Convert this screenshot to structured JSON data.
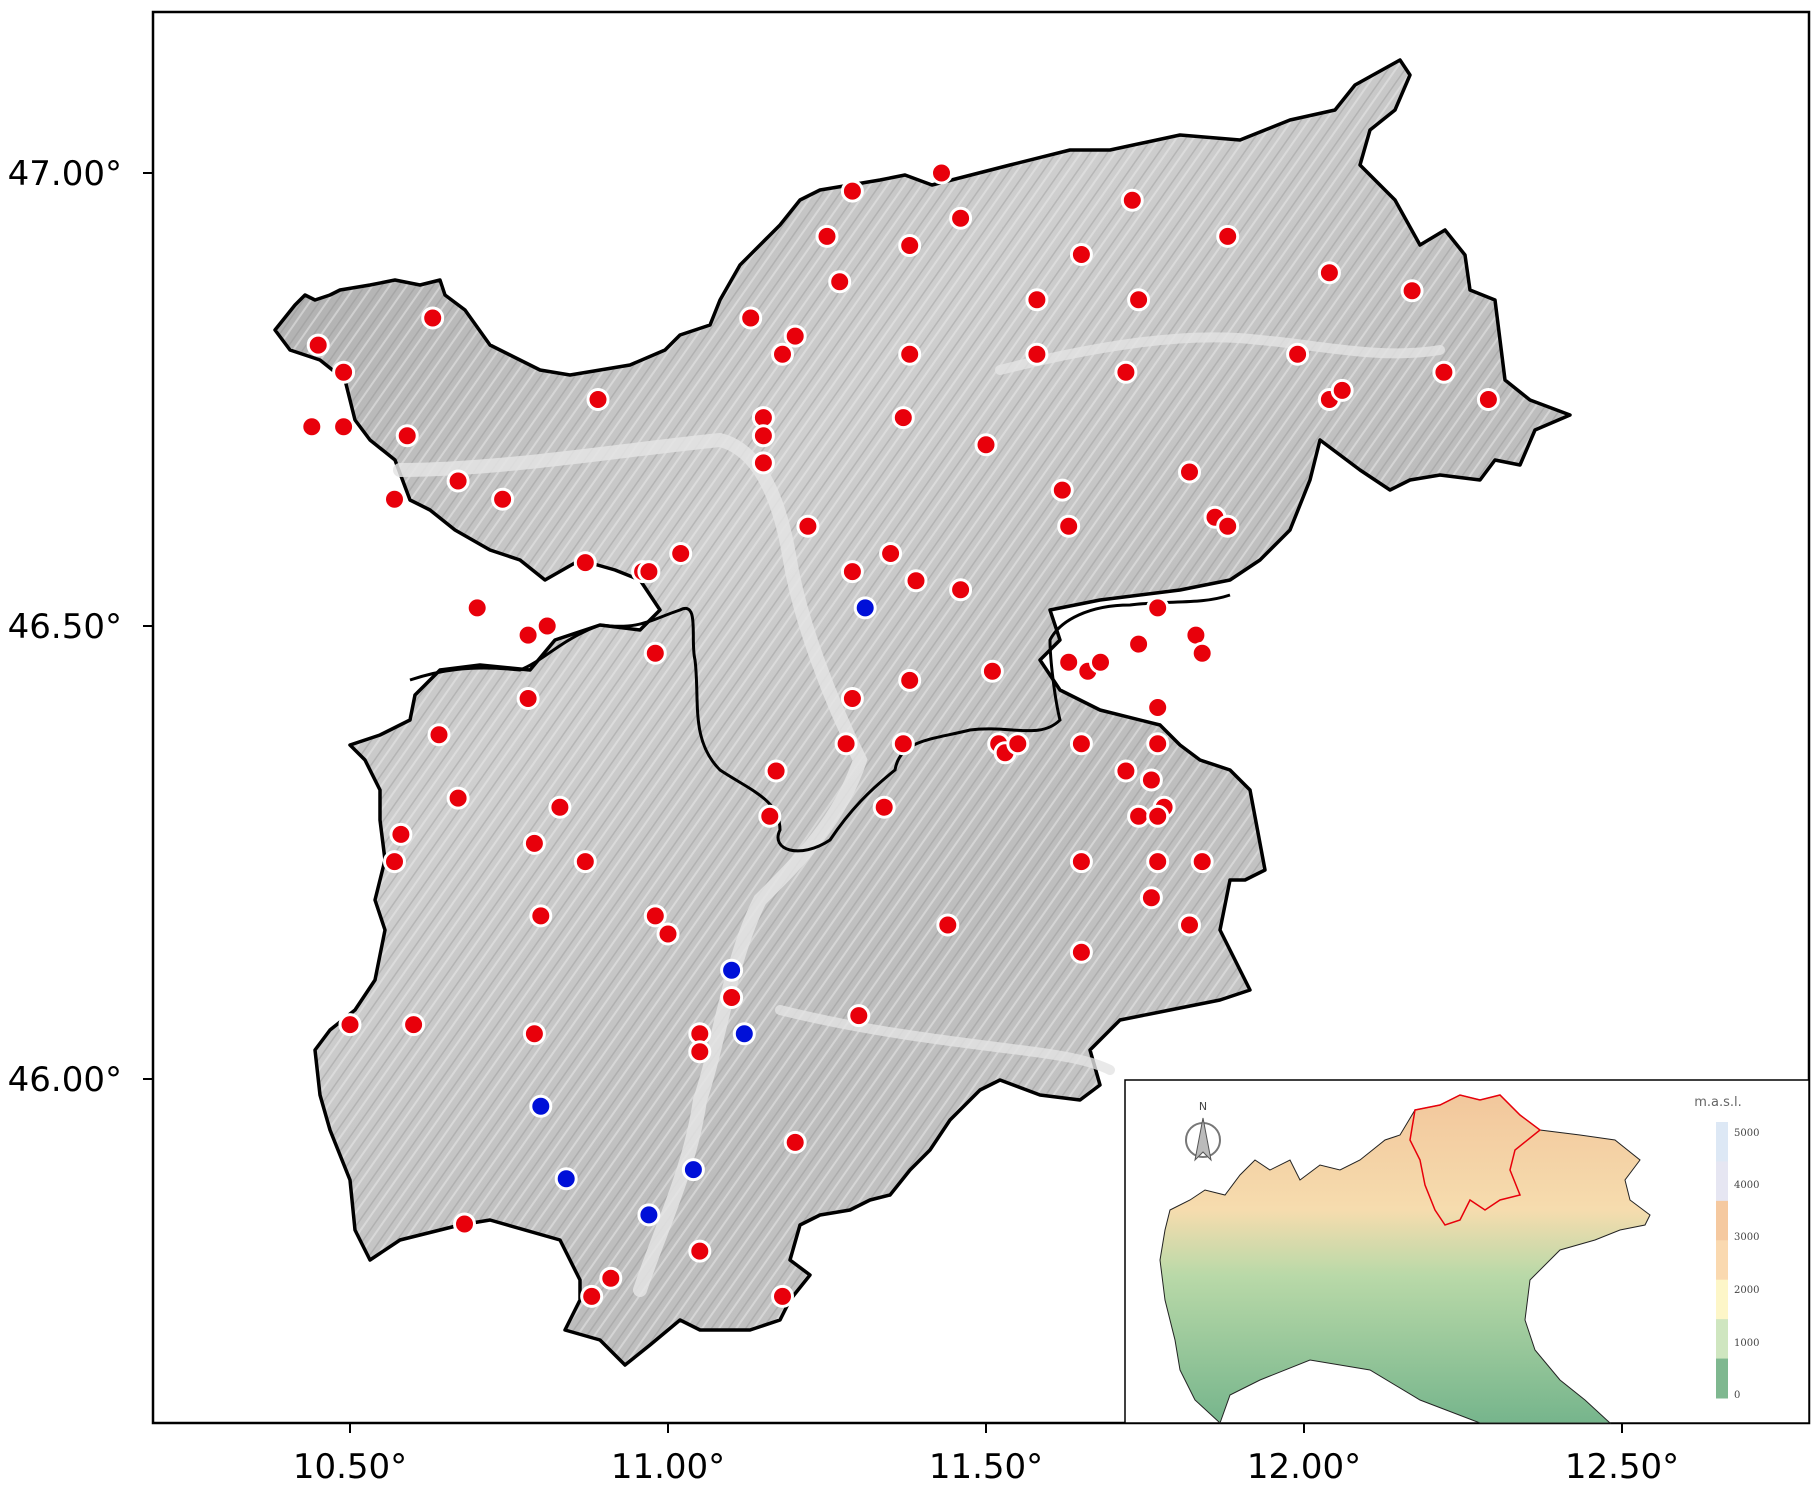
{
  "axes": {
    "x_ticks": [
      "10.50°",
      "11.00°",
      "11.50°",
      "12.00°",
      "12.50°"
    ],
    "y_ticks": [
      "47.00°",
      "46.50°",
      "46.00°"
    ]
  },
  "stations": {
    "red_color": "#e8000b",
    "blue_color": "#0010d8",
    "red": [
      [
        10.45,
        46.81
      ],
      [
        10.49,
        46.78
      ],
      [
        10.44,
        46.72
      ],
      [
        10.49,
        46.72
      ],
      [
        10.63,
        46.84
      ],
      [
        10.59,
        46.71
      ],
      [
        10.67,
        46.66
      ],
      [
        10.57,
        46.64
      ],
      [
        10.74,
        46.64
      ],
      [
        10.89,
        46.75
      ],
      [
        10.87,
        46.57
      ],
      [
        10.96,
        46.56
      ],
      [
        10.97,
        46.56
      ],
      [
        11.02,
        46.58
      ],
      [
        10.7,
        46.52
      ],
      [
        10.78,
        46.49
      ],
      [
        10.81,
        46.5
      ],
      [
        10.98,
        46.47
      ],
      [
        11.29,
        46.98
      ],
      [
        11.43,
        47.0
      ],
      [
        11.25,
        46.93
      ],
      [
        11.46,
        46.95
      ],
      [
        11.38,
        46.92
      ],
      [
        11.27,
        46.88
      ],
      [
        11.13,
        46.84
      ],
      [
        11.2,
        46.82
      ],
      [
        11.18,
        46.8
      ],
      [
        11.38,
        46.8
      ],
      [
        11.15,
        46.73
      ],
      [
        11.15,
        46.71
      ],
      [
        11.15,
        46.68
      ],
      [
        11.37,
        46.73
      ],
      [
        11.5,
        46.7
      ],
      [
        11.22,
        46.61
      ],
      [
        11.29,
        46.56
      ],
      [
        11.35,
        46.58
      ],
      [
        11.39,
        46.55
      ],
      [
        11.46,
        46.54
      ],
      [
        11.58,
        46.86
      ],
      [
        11.65,
        46.91
      ],
      [
        11.73,
        46.97
      ],
      [
        11.74,
        46.86
      ],
      [
        11.88,
        46.93
      ],
      [
        11.58,
        46.8
      ],
      [
        11.72,
        46.78
      ],
      [
        12.04,
        46.89
      ],
      [
        12.17,
        46.87
      ],
      [
        11.99,
        46.8
      ],
      [
        12.22,
        46.78
      ],
      [
        12.04,
        46.75
      ],
      [
        12.06,
        46.76
      ],
      [
        12.29,
        46.75
      ],
      [
        11.82,
        46.67
      ],
      [
        11.62,
        46.65
      ],
      [
        11.63,
        46.61
      ],
      [
        11.86,
        46.62
      ],
      [
        11.88,
        46.61
      ],
      [
        11.77,
        46.52
      ],
      [
        11.83,
        46.49
      ],
      [
        11.84,
        46.47
      ],
      [
        11.74,
        46.48
      ],
      [
        11.63,
        46.46
      ],
      [
        11.66,
        46.45
      ],
      [
        11.68,
        46.46
      ],
      [
        11.51,
        46.45
      ],
      [
        11.38,
        46.44
      ],
      [
        11.29,
        46.42
      ],
      [
        11.28,
        46.37
      ],
      [
        11.37,
        46.37
      ],
      [
        11.77,
        46.41
      ],
      [
        11.77,
        46.37
      ],
      [
        11.65,
        46.37
      ],
      [
        11.52,
        46.37
      ],
      [
        11.53,
        46.36
      ],
      [
        11.55,
        46.37
      ],
      [
        11.72,
        46.34
      ],
      [
        11.76,
        46.33
      ],
      [
        11.78,
        46.3
      ],
      [
        11.74,
        46.29
      ],
      [
        11.77,
        46.29
      ],
      [
        11.17,
        46.34
      ],
      [
        11.16,
        46.29
      ],
      [
        11.34,
        46.3
      ],
      [
        10.78,
        46.42
      ],
      [
        10.64,
        46.38
      ],
      [
        10.67,
        46.31
      ],
      [
        10.83,
        46.3
      ],
      [
        10.58,
        46.27
      ],
      [
        10.57,
        46.24
      ],
      [
        10.79,
        46.26
      ],
      [
        10.87,
        46.24
      ],
      [
        11.65,
        46.24
      ],
      [
        11.77,
        46.24
      ],
      [
        11.84,
        46.24
      ],
      [
        11.76,
        46.2
      ],
      [
        10.8,
        46.18
      ],
      [
        10.98,
        46.18
      ],
      [
        11.0,
        46.16
      ],
      [
        11.44,
        46.17
      ],
      [
        11.65,
        46.14
      ],
      [
        11.82,
        46.17
      ],
      [
        10.5,
        46.06
      ],
      [
        10.6,
        46.06
      ],
      [
        10.79,
        46.05
      ],
      [
        11.05,
        46.05
      ],
      [
        11.05,
        46.03
      ],
      [
        11.1,
        46.09
      ],
      [
        11.3,
        46.07
      ],
      [
        11.2,
        45.93
      ],
      [
        10.68,
        45.84
      ],
      [
        11.05,
        45.81
      ],
      [
        10.91,
        45.78
      ],
      [
        10.88,
        45.76
      ],
      [
        11.18,
        45.76
      ]
    ],
    "blue": [
      [
        11.31,
        46.52
      ],
      [
        11.1,
        46.12
      ],
      [
        11.12,
        46.05
      ],
      [
        10.8,
        45.97
      ],
      [
        10.84,
        45.89
      ],
      [
        10.97,
        45.85
      ],
      [
        11.04,
        45.9
      ]
    ]
  },
  "inset": {
    "north_label": "N",
    "legend_title": "m.a.s.l.",
    "legend_ticks": [
      "5000",
      "4000",
      "3000",
      "2000",
      "1000",
      "0"
    ],
    "legend_colors": [
      "#dde8f5",
      "#e6e6f2",
      "#f5c9a0",
      "#fad9b0",
      "#fdf6c8",
      "#cfe6c0",
      "#7fb890"
    ]
  }
}
